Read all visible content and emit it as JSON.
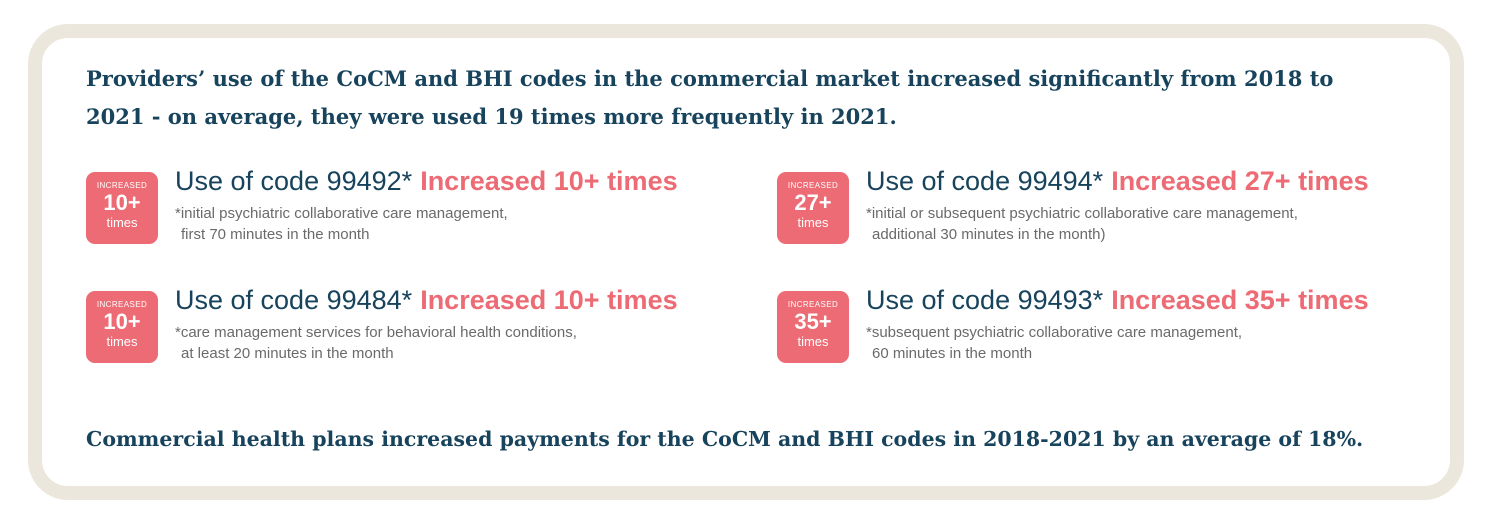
{
  "headline": "Providers’ use of the CoCM and BHI codes in the commercial market increased significantly from 2018 to 2021 - on average, they were used 19 times more frequently in 2021.",
  "stats": [
    {
      "badge_top": "INCREASED",
      "badge_number": "10+",
      "badge_bottom": "times",
      "code_label": "Use of code 99492*",
      "increase_label": "Increased 10+ times",
      "desc_line1": "*initial psychiatric collaborative care management,",
      "desc_line2": "first 70 minutes in the month"
    },
    {
      "badge_top": "INCREASED",
      "badge_number": "27+",
      "badge_bottom": "times",
      "code_label": "Use of code 99494*",
      "increase_label": "Increased 27+ times",
      "desc_line1": "*initial or subsequent psychiatric collaborative care management,",
      "desc_line2": "additional 30 minutes in the month)"
    },
    {
      "badge_top": "INCREASED",
      "badge_number": "10+",
      "badge_bottom": "times",
      "code_label": "Use of code 99484*",
      "increase_label": "Increased 10+ times",
      "desc_line1": "*care management services for behavioral health conditions,",
      "desc_line2": "at least 20 minutes in the month"
    },
    {
      "badge_top": "INCREASED",
      "badge_number": "35+",
      "badge_bottom": "times",
      "code_label": "Use of code 99493*",
      "increase_label": "Increased 35+ times",
      "desc_line1": "*subsequent psychiatric collaborative care management,",
      "desc_line2": "60 minutes in the month"
    }
  ],
  "footer": "Commercial health plans increased payments for the CoCM and BHI codes in 2018-2021 by an average of 18%.",
  "colors": {
    "navy": "#17435c",
    "coral": "#ec6b74",
    "gray": "#6a6a6a",
    "border": "#ece7dc"
  }
}
